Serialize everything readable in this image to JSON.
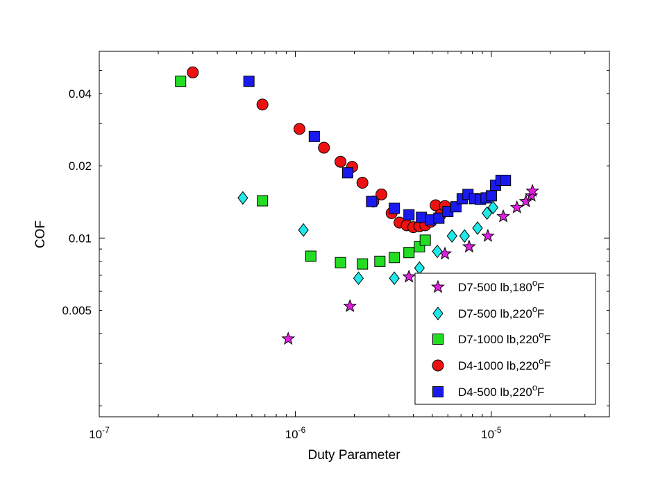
{
  "chart_data": {
    "type": "scatter",
    "xlabel": "Duty Parameter",
    "ylabel": "COF",
    "x_scale": "log",
    "y_scale": "log",
    "xlim": [
      1e-07,
      4e-05
    ],
    "ylim": [
      0.0018,
      0.06
    ],
    "x_ticks": [
      {
        "value": 1e-07,
        "base": "10",
        "exp": "-7"
      },
      {
        "value": 1e-06,
        "base": "10",
        "exp": "-6"
      },
      {
        "value": 1e-05,
        "base": "10",
        "exp": "-5"
      }
    ],
    "y_ticks": [
      {
        "value": 0.005,
        "label": "0.005"
      },
      {
        "value": 0.01,
        "label": "0.01"
      },
      {
        "value": 0.02,
        "label": "0.02"
      },
      {
        "value": 0.04,
        "label": "0.04"
      }
    ],
    "grid": false,
    "legend": "bottom-right",
    "series": [
      {
        "name": "D7-500 lb,180",
        "name_sup": "o",
        "name_suffix": "F",
        "marker": "star",
        "color": "#e020e0",
        "x": [
          9.2e-07,
          1.9e-06,
          3.8e-06,
          5.8e-06,
          7.7e-06,
          9.6e-06,
          1.15e-05,
          1.35e-05,
          1.5e-05,
          1.6e-05,
          1.62e-05
        ],
        "y": [
          0.0038,
          0.0052,
          0.0069,
          0.0086,
          0.0092,
          0.0102,
          0.0123,
          0.0134,
          0.0142,
          0.015,
          0.0157
        ]
      },
      {
        "name": "D7-500 lb,220",
        "name_sup": "o",
        "name_suffix": "F",
        "marker": "diamond",
        "color": "#20e8e8",
        "x": [
          5.4e-07,
          1.1e-06,
          2.1e-06,
          3.2e-06,
          4.3e-06,
          5.3e-06,
          6.3e-06,
          7.3e-06,
          8.5e-06,
          9.5e-06,
          1.02e-05
        ],
        "y": [
          0.0147,
          0.0108,
          0.0068,
          0.0068,
          0.0075,
          0.0088,
          0.0102,
          0.0102,
          0.011,
          0.0127,
          0.0134
        ]
      },
      {
        "name": "D7-1000 lb,220",
        "name_sup": "o",
        "name_suffix": "F",
        "marker": "square",
        "color": "#22dd22",
        "x": [
          2.6e-07,
          6.8e-07,
          1.2e-06,
          1.7e-06,
          2.2e-06,
          2.7e-06,
          3.2e-06,
          3.8e-06,
          4.3e-06,
          4.6e-06
        ],
        "y": [
          0.045,
          0.0143,
          0.0084,
          0.0079,
          0.0078,
          0.008,
          0.0083,
          0.0087,
          0.0092,
          0.0098
        ]
      },
      {
        "name": "D4-1000 lb,220",
        "name_sup": "o",
        "name_suffix": "F",
        "marker": "circle",
        "color": "#ee1111",
        "x": [
          3e-07,
          6.8e-07,
          1.05e-06,
          1.4e-06,
          1.7e-06,
          1.95e-06,
          2.2e-06,
          2.5e-06,
          2.75e-06,
          3.1e-06,
          3.4e-06,
          3.7e-06,
          4e-06,
          4.3e-06,
          4.6e-06,
          4.9e-06,
          5.2e-06,
          5.5e-06,
          5.8e-06
        ],
        "y": [
          0.049,
          0.036,
          0.0285,
          0.0238,
          0.0208,
          0.0198,
          0.017,
          0.0142,
          0.0152,
          0.0127,
          0.0116,
          0.0113,
          0.0111,
          0.0112,
          0.0113,
          0.0117,
          0.0137,
          0.0125,
          0.0136
        ]
      },
      {
        "name": "D4-500 lb,220",
        "name_sup": "o",
        "name_suffix": "F",
        "marker": "square",
        "color": "#1a1aee",
        "x": [
          5.8e-07,
          1.25e-06,
          1.85e-06,
          2.45e-06,
          3.2e-06,
          3.8e-06,
          4.4e-06,
          4.9e-06,
          5.4e-06,
          6e-06,
          6.6e-06,
          7.1e-06,
          7.6e-06,
          8.2e-06,
          8.8e-06,
          9.4e-06,
          1e-05,
          1.05e-05,
          1.12e-05,
          1.18e-05
        ],
        "y": [
          0.045,
          0.0265,
          0.0187,
          0.0142,
          0.0133,
          0.0125,
          0.0122,
          0.0119,
          0.0121,
          0.0129,
          0.0135,
          0.0146,
          0.0152,
          0.0146,
          0.0145,
          0.0147,
          0.015,
          0.0166,
          0.0174,
          0.0174
        ]
      }
    ]
  }
}
